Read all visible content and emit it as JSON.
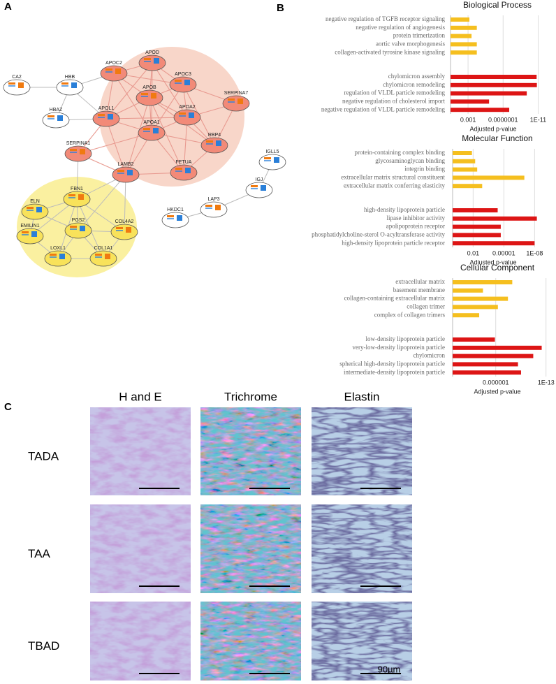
{
  "panel_labels": [
    "A",
    "B",
    "C"
  ],
  "network": {
    "nodes": [
      {
        "label": "CA2"
      },
      {
        "label": "HBB"
      },
      {
        "label": "HBAZ"
      },
      {
        "label": "APOC2"
      },
      {
        "label": "APOD"
      },
      {
        "label": "APOC3"
      },
      {
        "label": "APOB"
      },
      {
        "label": "APOL1"
      },
      {
        "label": "APOA2"
      },
      {
        "label": "SERPINA7"
      },
      {
        "label": "APOA1"
      },
      {
        "label": "RBP4"
      },
      {
        "label": "SERPINA1"
      },
      {
        "label": "LAMB2"
      },
      {
        "label": "FETUA"
      },
      {
        "label": "FBN1"
      },
      {
        "label": "ELN"
      },
      {
        "label": "PGS2"
      },
      {
        "label": "COL4A2"
      },
      {
        "label": "EMILIN1"
      },
      {
        "label": "LOXL1"
      },
      {
        "label": "COL1A1"
      },
      {
        "label": "IGLL5"
      },
      {
        "label": "IGJ"
      },
      {
        "label": "LAP3"
      },
      {
        "label": "HKDC1"
      }
    ]
  },
  "chart_data": [
    {
      "type": "bar",
      "title": "Biological Process",
      "xlabel": "Adjusted p-value",
      "log": true,
      "xlim": [
        0.1,
        1e-12
      ],
      "xticks": [
        0.001,
        {
          "value": 1e-07,
          "label": "0.0000001"
        },
        {
          "value": 1e-11,
          "label": "1E-11"
        }
      ],
      "groups": [
        {
          "color": "#f5bf1f",
          "categories": [
            "negative regulation of TGFB receptor signaling",
            "negative regulation of angiogenesis",
            "protein trimerization",
            "aortic valve morphogenesis",
            "collagen-activated tyrosine kinase signaling"
          ],
          "values": [
            0.0007,
            0.0001,
            0.0004,
            0.0001,
            0.0001
          ]
        },
        {
          "color": "#dd1515",
          "categories": [
            "chylomicron assembly",
            "chylomicron remodeling",
            "regulation of VLDL particle remodeling",
            "negative regulation of cholesterol import",
            "negative regulation of VLDL particle remodeling"
          ],
          "values": [
            1.5e-11,
            1.4e-11,
            2e-10,
            4e-06,
            2e-08
          ]
        }
      ]
    },
    {
      "type": "bar",
      "title": "Molecular Function",
      "xlabel": "Adjusted p-value",
      "log": true,
      "xlim": [
        1,
        1e-09
      ],
      "xticks": [
        0.01,
        1e-05,
        {
          "value": 1e-08,
          "label": "1E-08"
        }
      ],
      "groups": [
        {
          "color": "#f5bf1f",
          "categories": [
            "protein-containing complex binding",
            "glycosaminoglycan binding",
            "integrin binding",
            "extracellular matrix structural constituent",
            "extracellular matrix conferring elasticity"
          ],
          "values": [
            0.013,
            0.0063,
            0.004,
            1e-07,
            0.0013
          ]
        },
        {
          "color": "#dd1515",
          "categories": [
            "high-density lipoprotein particle",
            "lipase inhibitor activity",
            "apolipoprotein receptor",
            "phosphatidylcholine-sterol O-acyltransferase activity",
            "high-density lipoprotein particle receptor"
          ],
          "values": [
            4e-05,
            6e-09,
            2e-05,
            2e-05,
            1e-08
          ]
        }
      ]
    },
    {
      "type": "bar",
      "title": "Cellular Component",
      "xlabel": "Adjusted p-value",
      "log": true,
      "xlim": [
        1,
        1e-14
      ],
      "xticks": [
        1e-06,
        {
          "value": 1e-13,
          "label": "1E-13"
        }
      ],
      "groups": [
        {
          "color": "#f5bf1f",
          "categories": [
            "extracellular matrix",
            "basement membrane",
            "collagen-containing extracellular matrix",
            "collagen trimer",
            "complex of collagen trimers"
          ],
          "values": [
            5e-09,
            6e-05,
            2e-08,
            5e-07,
            0.0002
          ]
        },
        {
          "color": "#dd1515",
          "categories": [
            "low-density lipoprotein particle",
            "very-low-density lipoprotein particle",
            "chylomicron",
            "spherical high-density lipoprotein particle",
            "intermediate-density lipoprotein particle"
          ],
          "values": [
            1.3e-06,
            4e-13,
            6e-12,
            8e-10,
            3e-10
          ]
        }
      ]
    }
  ],
  "histology": {
    "columns": [
      "H and E",
      "Trichrome",
      "Elastin"
    ],
    "rows": [
      "TADA",
      "TAA",
      "TBAD"
    ],
    "scale_bar": "90µm"
  }
}
